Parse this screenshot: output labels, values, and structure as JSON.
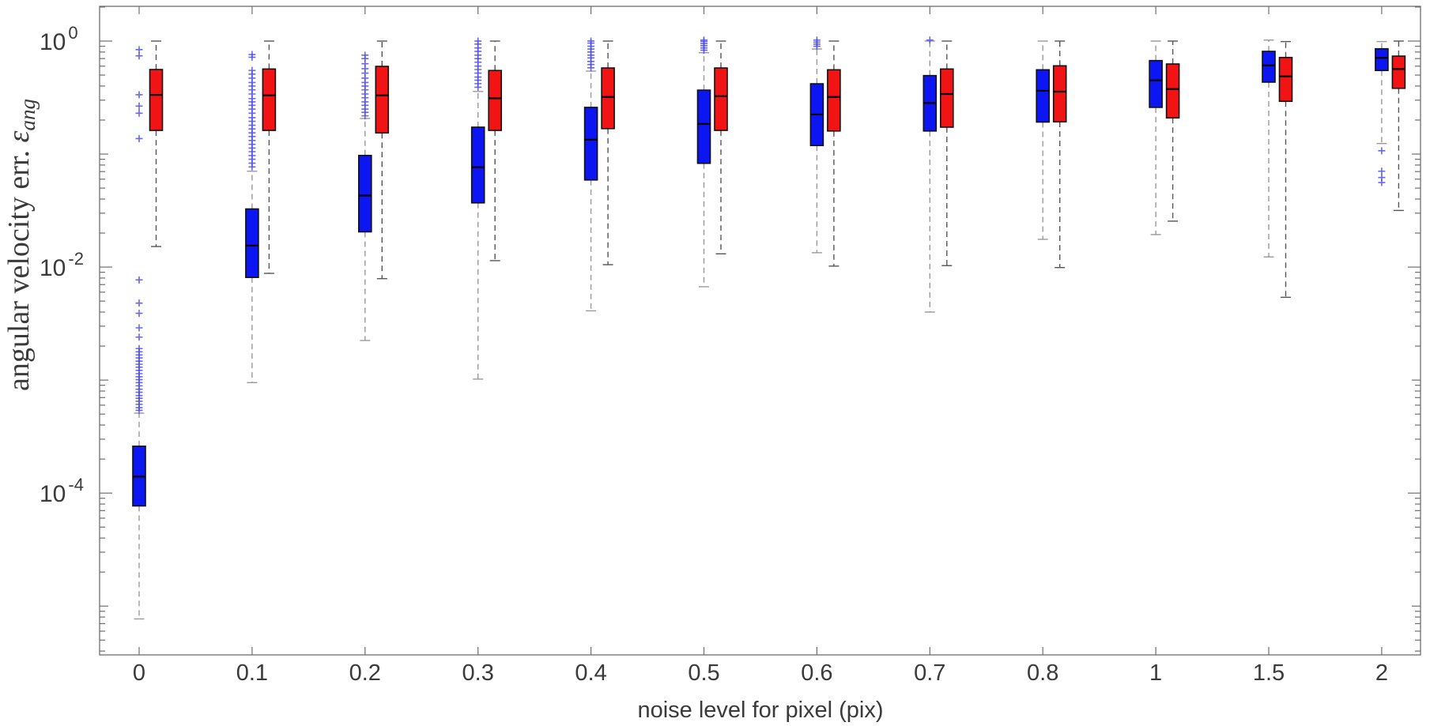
{
  "chart_data": {
    "type": "boxplot",
    "title": "",
    "xlabel": "noise level for pixel (pix)",
    "ylabel": {
      "text": "angular velocity err.",
      "symbol": "ε",
      "subscript": "ang"
    },
    "yscale": "log",
    "ylim": [
      3.7e-06,
      2.03
    ],
    "ytick_labeled_exponents": [
      0,
      -2,
      -4
    ],
    "grid": false,
    "legend_position": "none",
    "categories": [
      "0",
      "0.1",
      "0.2",
      "0.3",
      "0.4",
      "0.5",
      "0.6",
      "0.7",
      "0.8",
      "1",
      "1.5",
      "2"
    ],
    "colors": {
      "blue_series": "#0b16f2",
      "red_series": "#f21414",
      "box_edge": "#111111",
      "median": "#000000",
      "blue_whisker": "#999999",
      "red_whisker": "#555555",
      "outlier": "#4b4bee",
      "axis": "#6e6e6e",
      "text": "#3a3a3a",
      "background": "#ffffff"
    },
    "series": [
      {
        "name": "blue",
        "boxes": [
          {
            "whislo": 7.7e-06,
            "q1": 7.7e-05,
            "med": 0.00014,
            "q3": 0.00026,
            "whishi": 0.00051,
            "outliers": [
              0.84,
              0.74,
              0.335,
              0.266,
              0.23,
              0.137,
              0.0077,
              0.0048,
              0.0039,
              0.0029,
              0.0024,
              0.0019,
              0.00178,
              0.00167,
              0.00157,
              0.00147,
              0.00138,
              0.0013,
              0.00122,
              0.00114,
              0.00107,
              0.00101,
              0.00095,
              0.00089,
              0.00083,
              0.00078,
              0.00073,
              0.00069,
              0.00065,
              0.00061,
              0.00057,
              0.00054
            ]
          },
          {
            "whislo": 0.00095,
            "q1": 0.0081,
            "med": 0.0155,
            "q3": 0.0327,
            "whishi": 0.0705,
            "outliers": [
              0.76,
              0.72,
              0.55,
              0.51,
              0.47,
              0.43,
              0.4,
              0.37,
              0.34,
              0.31,
              0.29,
              0.27,
              0.25,
              0.23,
              0.21,
              0.195,
              0.18,
              0.167,
              0.154,
              0.143,
              0.132,
              0.122,
              0.113,
              0.105,
              0.097,
              0.09,
              0.083,
              0.077
            ]
          },
          {
            "whislo": 0.00224,
            "q1": 0.0205,
            "med": 0.043,
            "q3": 0.0973,
            "whishi": 0.2065,
            "outliers": [
              0.75,
              0.7,
              0.63,
              0.57,
              0.52,
              0.47,
              0.43,
              0.4,
              0.37,
              0.34,
              0.315,
              0.29,
              0.27,
              0.25,
              0.234,
              0.218
            ]
          },
          {
            "whislo": 0.00102,
            "q1": 0.037,
            "med": 0.0764,
            "q3": 0.173,
            "whishi": 0.358,
            "outliers": [
              1.0,
              0.94,
              0.87,
              0.81,
              0.75,
              0.7,
              0.65,
              0.6,
              0.56,
              0.52,
              0.48,
              0.45,
              0.42,
              0.39
            ]
          },
          {
            "whislo": 0.0041,
            "q1": 0.059,
            "med": 0.134,
            "q3": 0.259,
            "whishi": 0.542,
            "outliers": [
              1.0,
              0.96,
              0.9,
              0.85,
              0.8,
              0.75,
              0.71,
              0.66,
              0.62,
              0.58
            ]
          },
          {
            "whislo": 0.0067,
            "q1": 0.0828,
            "med": 0.185,
            "q3": 0.368,
            "whishi": 0.789,
            "outliers": [
              1.02,
              0.99,
              0.95,
              0.91,
              0.87,
              0.83
            ]
          },
          {
            "whislo": 0.0134,
            "q1": 0.119,
            "med": 0.224,
            "q3": 0.419,
            "whishi": 0.851,
            "outliers": [
              1.02,
              0.98,
              0.94,
              0.9
            ]
          },
          {
            "whislo": 0.004,
            "q1": 0.16,
            "med": 0.283,
            "q3": 0.495,
            "whishi": 1.0,
            "outliers": [
              1.02
            ]
          },
          {
            "whislo": 0.0176,
            "q1": 0.192,
            "med": 0.363,
            "q3": 0.557,
            "whishi": 1.0,
            "outliers": []
          },
          {
            "whislo": 0.0194,
            "q1": 0.259,
            "med": 0.449,
            "q3": 0.672,
            "whishi": 1.0,
            "outliers": []
          },
          {
            "whislo": 0.0123,
            "q1": 0.433,
            "med": 0.61,
            "q3": 0.811,
            "whishi": 1.02,
            "outliers": []
          },
          {
            "whislo": 0.124,
            "q1": 0.549,
            "med": 0.71,
            "q3": 0.855,
            "whishi": 0.99,
            "outliers": [
              0.107,
              0.0705,
              0.062,
              0.056
            ]
          }
        ]
      },
      {
        "name": "red",
        "boxes": [
          {
            "whislo": 0.0152,
            "q1": 0.162,
            "med": 0.334,
            "q3": 0.56,
            "whishi": 1.0,
            "outliers": []
          },
          {
            "whislo": 0.0088,
            "q1": 0.162,
            "med": 0.331,
            "q3": 0.566,
            "whishi": 1.0,
            "outliers": []
          },
          {
            "whislo": 0.0079,
            "q1": 0.154,
            "med": 0.331,
            "q3": 0.597,
            "whishi": 1.0,
            "outliers": []
          },
          {
            "whislo": 0.0114,
            "q1": 0.162,
            "med": 0.312,
            "q3": 0.549,
            "whishi": 1.0,
            "outliers": []
          },
          {
            "whislo": 0.0105,
            "q1": 0.168,
            "med": 0.32,
            "q3": 0.578,
            "whishi": 1.0,
            "outliers": []
          },
          {
            "whislo": 0.0131,
            "q1": 0.162,
            "med": 0.325,
            "q3": 0.578,
            "whishi": 1.0,
            "outliers": []
          },
          {
            "whislo": 0.0102,
            "q1": 0.16,
            "med": 0.32,
            "q3": 0.557,
            "whishi": 1.0,
            "outliers": []
          },
          {
            "whislo": 0.0103,
            "q1": 0.173,
            "med": 0.34,
            "q3": 0.566,
            "whishi": 1.0,
            "outliers": []
          },
          {
            "whislo": 0.0099,
            "q1": 0.193,
            "med": 0.357,
            "q3": 0.604,
            "whishi": 1.0,
            "outliers": []
          },
          {
            "whislo": 0.0255,
            "q1": 0.209,
            "med": 0.376,
            "q3": 0.627,
            "whishi": 1.0,
            "outliers": []
          },
          {
            "whislo": 0.0054,
            "q1": 0.293,
            "med": 0.487,
            "q3": 0.716,
            "whishi": 0.99,
            "outliers": []
          },
          {
            "whislo": 0.0317,
            "q1": 0.382,
            "med": 0.566,
            "q3": 0.736,
            "whishi": 1.0,
            "outliers": []
          }
        ]
      }
    ]
  }
}
